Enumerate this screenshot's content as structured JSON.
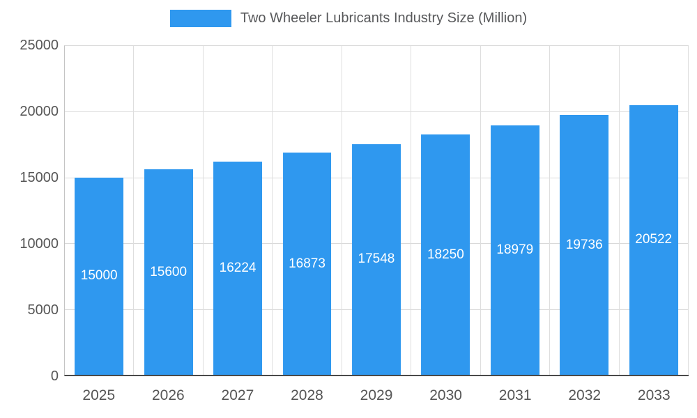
{
  "chart_data": {
    "type": "bar",
    "title": "Two Wheeler Lubricants Industry Size (Million)",
    "categories": [
      "2025",
      "2026",
      "2027",
      "2028",
      "2029",
      "2030",
      "2031",
      "2032",
      "2033"
    ],
    "values": [
      15000,
      15600,
      16224,
      16873,
      17548,
      18250,
      18979,
      19736,
      20522
    ],
    "xlabel": "",
    "ylabel": "",
    "ylim": [
      0,
      25000
    ],
    "yticks": [
      0,
      5000,
      10000,
      15000,
      20000,
      25000
    ],
    "bar_color": "#2F98EF",
    "value_label_color": "#ffffff",
    "grid": "on",
    "legend_position": "top-center"
  }
}
